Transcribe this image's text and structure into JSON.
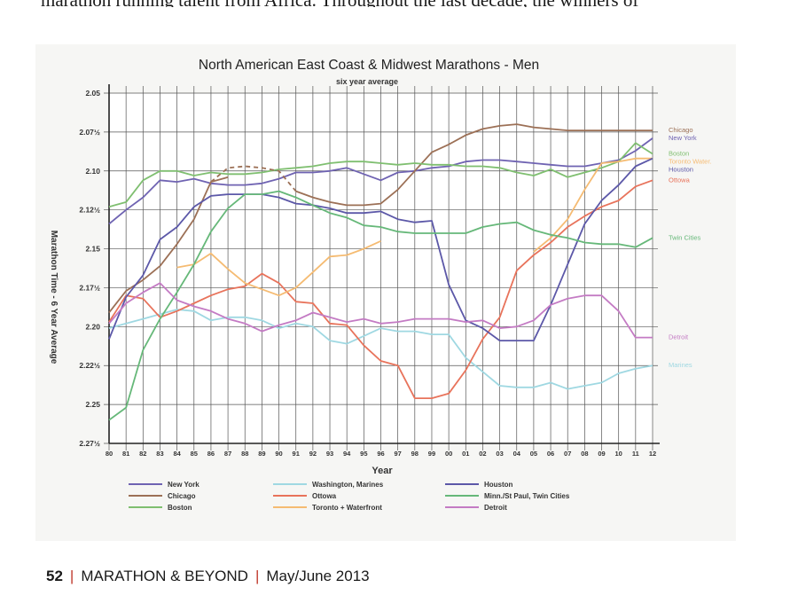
{
  "page": {
    "top_text": "marathon running talent from Africa. Throughout the last decade, the winners of",
    "footer": {
      "page_number": "52",
      "publication": "MARATHON & BEYOND",
      "issue": "May/June 2013"
    }
  },
  "chart_data": {
    "type": "line",
    "title": "North American East Coast & Midwest Marathons - Men",
    "subtitle": "six year average",
    "xlabel": "Year",
    "ylabel": "Marathon Time - 6 Year Average",
    "x": [
      "80",
      "81",
      "82",
      "83",
      "84",
      "85",
      "86",
      "87",
      "88",
      "89",
      "90",
      "91",
      "92",
      "93",
      "94",
      "95",
      "96",
      "97",
      "98",
      "99",
      "00",
      "01",
      "02",
      "03",
      "04",
      "05",
      "06",
      "07",
      "08",
      "09",
      "10",
      "11",
      "12"
    ],
    "y_ticks": [
      "2.05",
      "2.07½",
      "2.10",
      "2.12½",
      "2.15",
      "2.17½",
      "2.20",
      "2.22½",
      "2.25",
      "2.27½"
    ],
    "ylim_top_to_bottom": [
      "2.05",
      "2.27½"
    ],
    "grid": true,
    "series": [
      {
        "name": "New York",
        "color": "#6f63b2",
        "end_label": "New York",
        "values": [
          2.134,
          2.125,
          2.117,
          2.106,
          2.107,
          2.105,
          2.108,
          2.109,
          2.109,
          2.108,
          2.105,
          2.101,
          2.101,
          2.1,
          2.098,
          2.102,
          2.106,
          2.101,
          2.1,
          2.098,
          2.097,
          2.094,
          2.093,
          2.093,
          2.094,
          2.095,
          2.096,
          2.097,
          2.097,
          2.095,
          2.093,
          2.087,
          2.079
        ]
      },
      {
        "name": "Chicago",
        "color": "#9c7056",
        "end_label": "Chicago",
        "values": [
          2.191,
          2.177,
          2.17,
          2.161,
          2.147,
          2.131,
          2.107,
          2.104,
          null,
          null,
          null,
          2.113,
          2.117,
          2.12,
          2.122,
          2.122,
          2.121,
          2.112,
          2.1,
          2.088,
          2.083,
          2.077,
          2.073,
          2.071,
          2.07,
          2.072,
          2.073,
          2.074,
          2.074,
          2.074,
          2.074,
          2.074,
          2.074
        ]
      },
      {
        "name": "Boston",
        "color": "#7fbf70",
        "end_label": "Boston",
        "values": [
          2.123,
          2.12,
          2.106,
          2.1,
          2.1,
          2.103,
          2.101,
          2.102,
          2.102,
          2.101,
          2.099,
          2.098,
          2.097,
          2.095,
          2.094,
          2.094,
          2.095,
          2.096,
          2.095,
          2.096,
          2.096,
          2.097,
          2.097,
          2.098,
          2.101,
          2.103,
          2.099,
          2.104,
          2.101,
          2.098,
          2.094,
          2.082,
          2.089
        ]
      },
      {
        "name": "Washington, Marines",
        "color": "#9fd8e2",
        "end_label": "Marines",
        "values": [
          2.201,
          2.198,
          2.195,
          2.192,
          2.189,
          2.19,
          2.196,
          2.194,
          2.194,
          2.196,
          2.201,
          2.198,
          2.2,
          2.209,
          2.211,
          2.206,
          2.201,
          2.203,
          2.203,
          2.205,
          2.205,
          2.22,
          2.229,
          2.238,
          2.239,
          2.239,
          2.236,
          2.24,
          2.238,
          2.236,
          2.23,
          2.227,
          2.225
        ]
      },
      {
        "name": "Ottowa",
        "color": "#e8735b",
        "end_label": "Ottowa",
        "values": [
          2.197,
          2.18,
          2.182,
          2.194,
          2.19,
          2.185,
          2.18,
          2.176,
          2.174,
          2.166,
          2.172,
          2.184,
          2.185,
          2.198,
          2.199,
          2.212,
          2.222,
          2.225,
          2.246,
          2.246,
          2.243,
          2.228,
          2.208,
          2.194,
          2.164,
          2.154,
          2.146,
          2.136,
          2.129,
          2.123,
          2.119,
          2.11,
          2.106
        ]
      },
      {
        "name": "Toronto + Waterfront",
        "color": "#f5bb72",
        "end_label": "Toronto Water.",
        "values": [
          null,
          null,
          null,
          null,
          2.162,
          2.16,
          2.153,
          2.163,
          2.172,
          2.176,
          2.18,
          2.175,
          2.165,
          2.155,
          2.154,
          2.15,
          2.145,
          null,
          null,
          null,
          null,
          null,
          null,
          null,
          null,
          2.152,
          2.143,
          2.131,
          2.112,
          2.095,
          2.094,
          2.092,
          2.092
        ]
      },
      {
        "name": "Houston",
        "color": "#5c58a8",
        "end_label": "Houston",
        "values": [
          2.208,
          2.181,
          2.167,
          2.144,
          2.136,
          2.123,
          2.116,
          2.115,
          2.115,
          2.115,
          2.117,
          2.121,
          2.122,
          2.124,
          2.127,
          2.127,
          2.126,
          2.131,
          2.133,
          2.132,
          2.173,
          2.196,
          2.201,
          2.209,
          2.209,
          2.209,
          2.186,
          2.16,
          2.134,
          2.119,
          2.109,
          2.097,
          2.092
        ]
      },
      {
        "name": "Minn./St Paul, Twin Cities",
        "color": "#66b879",
        "end_label": "Twin Cities",
        "values": [
          2.26,
          2.252,
          2.215,
          2.195,
          2.178,
          2.16,
          2.139,
          2.124,
          2.115,
          2.115,
          2.113,
          2.117,
          2.122,
          2.127,
          2.13,
          2.135,
          2.136,
          2.139,
          2.14,
          2.14,
          2.14,
          2.14,
          2.136,
          2.134,
          2.133,
          2.138,
          2.141,
          2.143,
          2.146,
          2.147,
          2.147,
          2.149,
          2.143
        ]
      },
      {
        "name": "Detroit",
        "color": "#c47bc4",
        "end_label": "Detroit",
        "values": [
          2.198,
          2.185,
          2.178,
          2.172,
          2.183,
          2.187,
          2.19,
          2.195,
          2.198,
          2.203,
          2.199,
          2.196,
          2.191,
          2.194,
          2.197,
          2.195,
          2.198,
          2.197,
          2.195,
          2.195,
          2.195,
          2.197,
          2.196,
          2.201,
          2.2,
          2.196,
          2.186,
          2.182,
          2.18,
          2.18,
          2.19,
          2.207,
          2.207
        ]
      }
    ],
    "dashed_segment": {
      "series": "Chicago",
      "from": "86",
      "to": "91",
      "values": [
        2.107,
        2.098,
        2.097,
        2.098,
        2.1,
        2.113
      ]
    },
    "legend_position": "bottom",
    "legend": [
      "New York",
      "Chicago",
      "Boston",
      "Washington, Marines",
      "Ottowa",
      "Toronto + Waterfront",
      "Houston",
      "Minn./St Paul, Twin Cities",
      "Detroit"
    ]
  }
}
